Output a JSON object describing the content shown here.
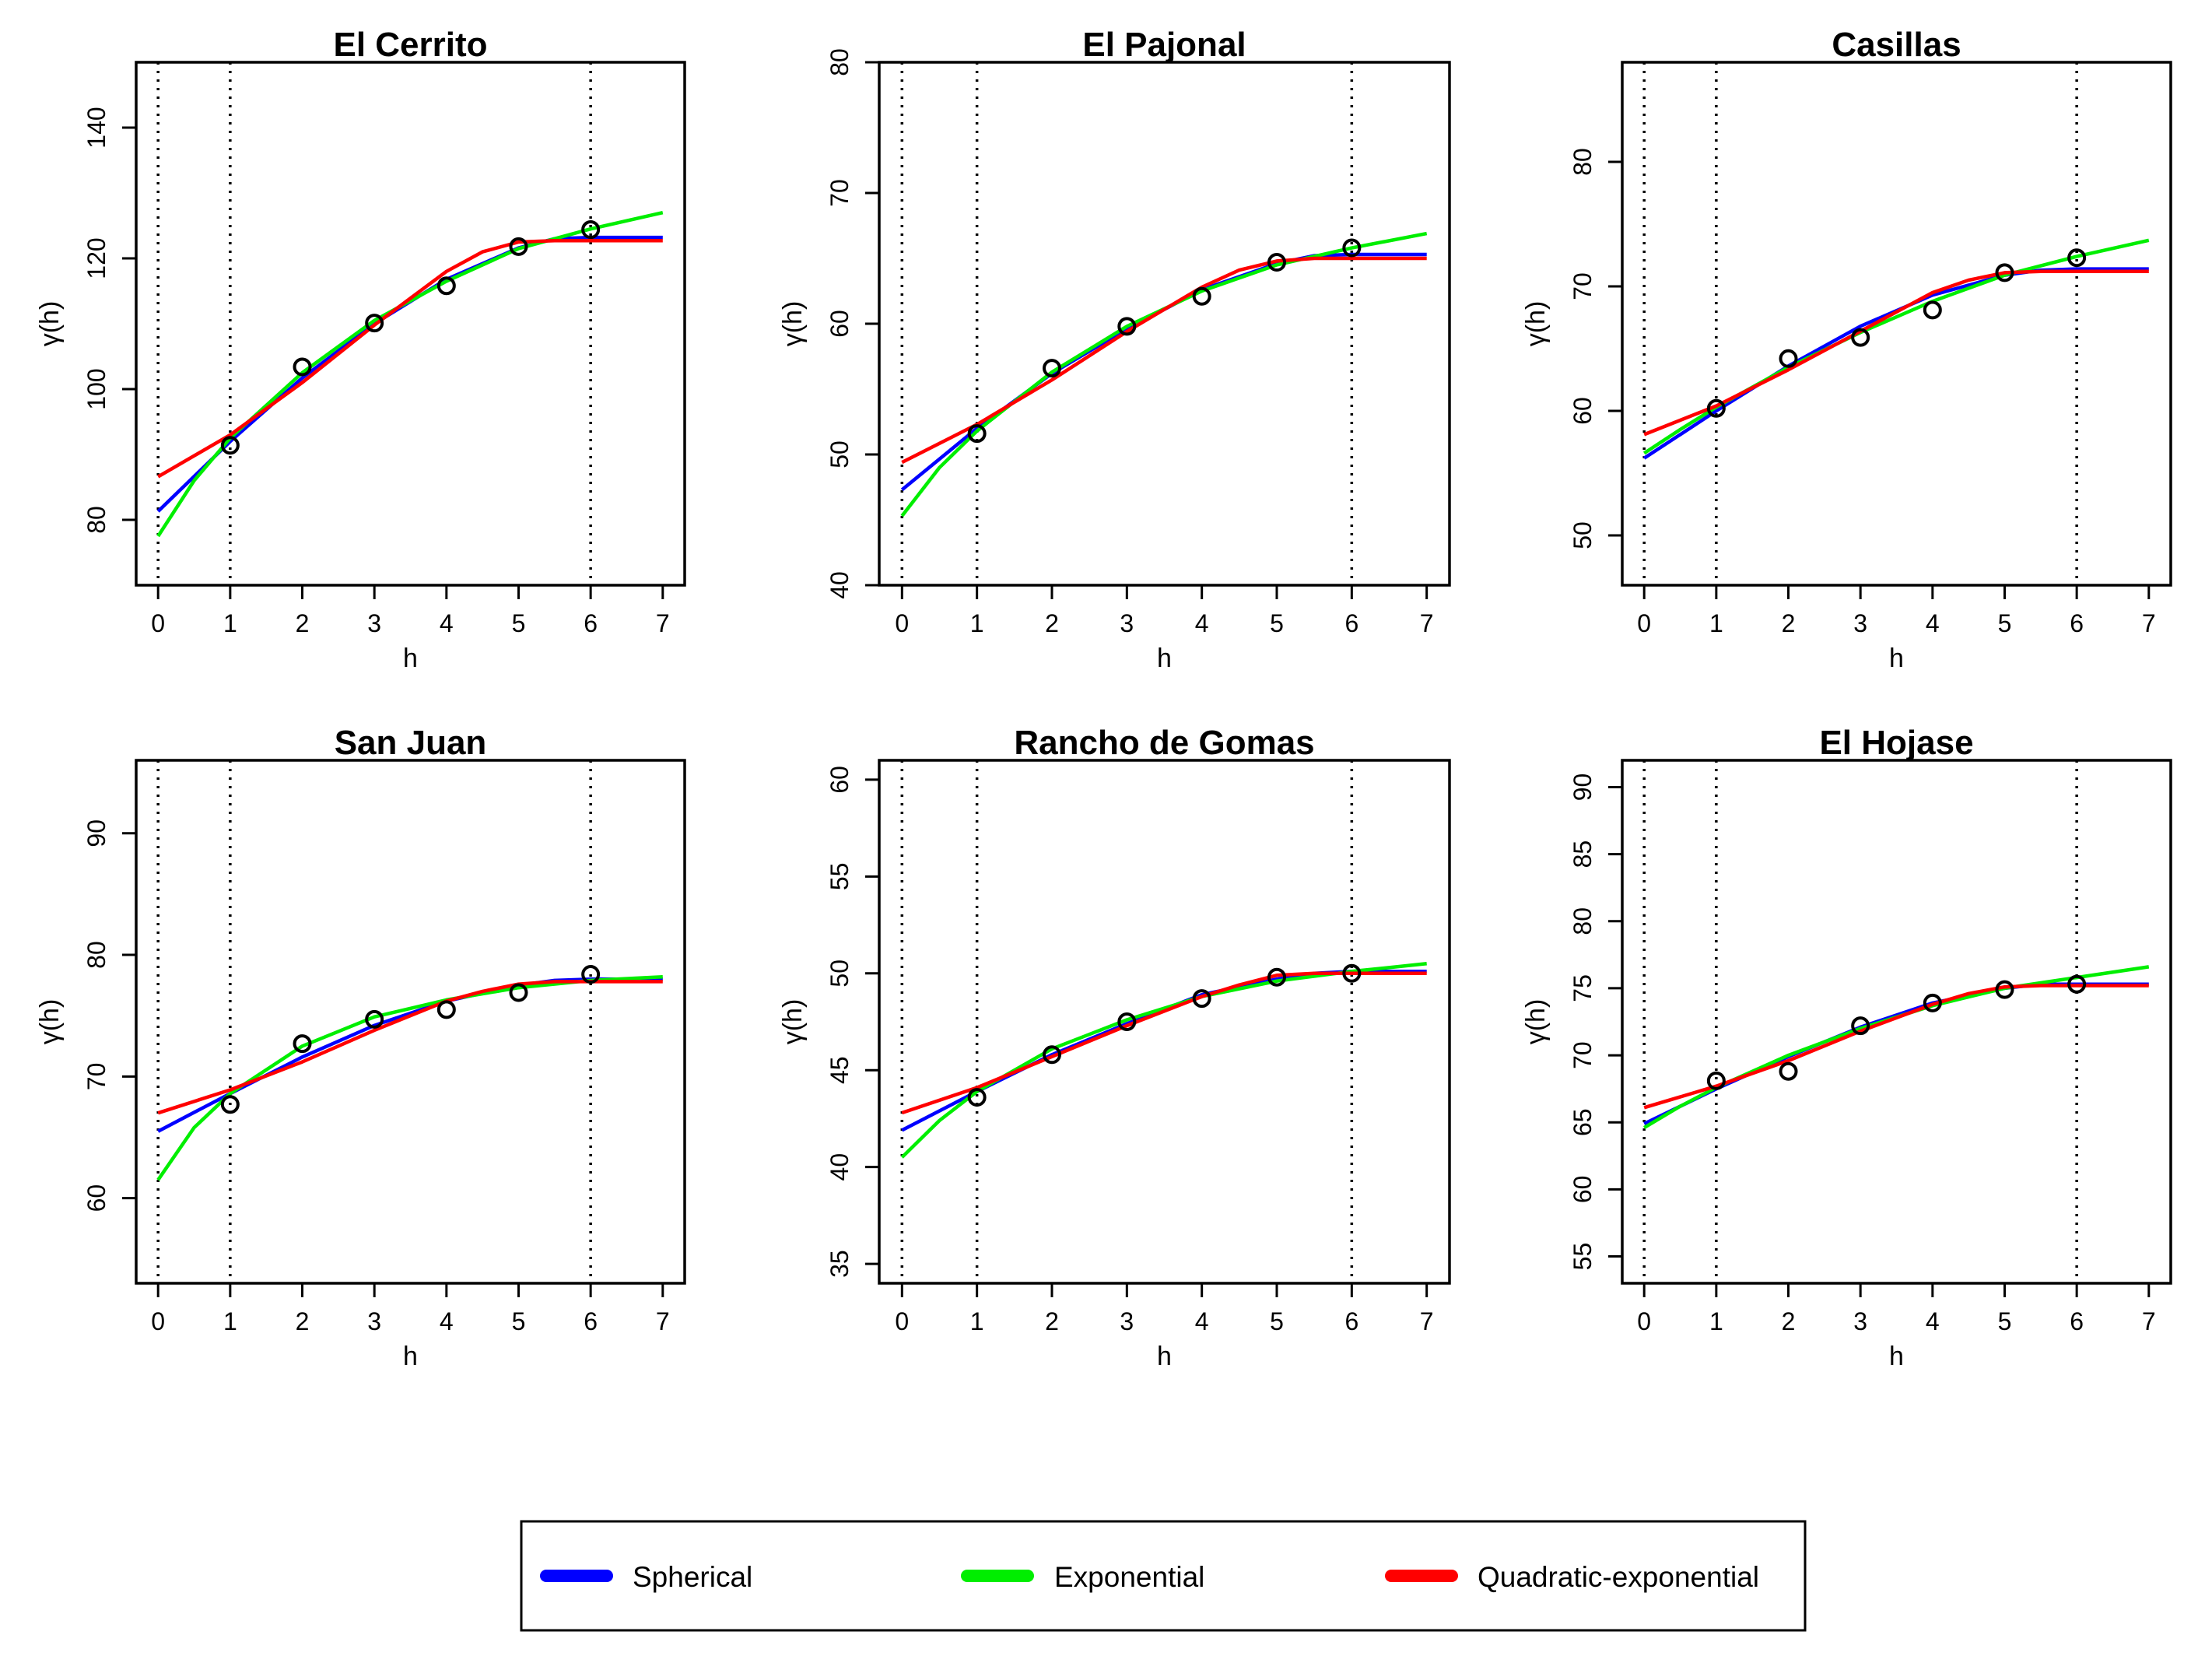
{
  "chart_data": [
    {
      "type": "line",
      "title": "El Cerrito",
      "xlabel": "h",
      "ylabel": "γ(h)",
      "xlim": [
        0,
        7
      ],
      "ylim": [
        70,
        150
      ],
      "xticks": [
        0,
        1,
        2,
        3,
        4,
        5,
        6,
        7
      ],
      "yticks": [
        80,
        100,
        120,
        140
      ],
      "vlines": [
        0,
        1,
        6
      ],
      "points": {
        "x": [
          1,
          2,
          3,
          4,
          5,
          6
        ],
        "y": [
          91.4,
          103.4,
          110.1,
          115.8,
          121.8,
          124.4
        ]
      },
      "series": [
        {
          "name": "Spherical",
          "color": "#0000ff",
          "x": [
            0,
            1,
            2,
            3,
            4,
            5,
            5.5,
            6,
            7
          ],
          "y": [
            81.3,
            92.0,
            101.7,
            110.0,
            116.8,
            121.6,
            123.0,
            123.2,
            123.2
          ]
        },
        {
          "name": "Exponential",
          "color": "#00ee00",
          "x": [
            0,
            0.5,
            1,
            2,
            3,
            4,
            5,
            6,
            7
          ],
          "y": [
            77.5,
            86.0,
            92.5,
            102.5,
            110.5,
            116.5,
            121.5,
            124.5,
            127.0
          ]
        },
        {
          "name": "Quadratic-exponential",
          "color": "#ff0000",
          "x": [
            0,
            1,
            2,
            3,
            4,
            4.5,
            5,
            5.5,
            6,
            7
          ],
          "y": [
            86.6,
            93.0,
            101.0,
            109.8,
            118.0,
            121.0,
            122.5,
            122.7,
            122.7,
            122.7
          ]
        }
      ]
    },
    {
      "type": "line",
      "title": "El Pajonal",
      "xlabel": "h",
      "ylabel": "γ(h)",
      "xlim": [
        0,
        7
      ],
      "ylim": [
        40,
        80
      ],
      "xticks": [
        0,
        1,
        2,
        3,
        4,
        5,
        6,
        7
      ],
      "yticks": [
        40,
        50,
        60,
        70,
        80
      ],
      "vlines": [
        0,
        1,
        6
      ],
      "points": {
        "x": [
          1,
          2,
          3,
          4,
          5,
          6
        ],
        "y": [
          51.6,
          56.6,
          59.8,
          62.1,
          64.7,
          65.8
        ]
      },
      "series": [
        {
          "name": "Spherical",
          "color": "#0000ff",
          "x": [
            0,
            1,
            2,
            3,
            4,
            5,
            5.5,
            6,
            7
          ],
          "y": [
            47.3,
            52.0,
            56.2,
            59.6,
            62.6,
            64.6,
            65.2,
            65.3,
            65.3
          ]
        },
        {
          "name": "Exponential",
          "color": "#00ee00",
          "x": [
            0,
            0.5,
            1,
            2,
            3,
            4,
            5,
            6,
            7
          ],
          "y": [
            45.3,
            49.0,
            51.8,
            56.3,
            59.8,
            62.5,
            64.5,
            65.8,
            66.9
          ]
        },
        {
          "name": "Quadratic-exponential",
          "color": "#ff0000",
          "x": [
            0,
            1,
            2,
            3,
            4,
            4.5,
            5,
            5.5,
            6,
            7
          ],
          "y": [
            49.4,
            52.3,
            55.7,
            59.4,
            62.8,
            64.1,
            64.8,
            65.0,
            65.0,
            65.0
          ]
        }
      ]
    },
    {
      "type": "line",
      "title": "Casillas",
      "xlabel": "h",
      "ylabel": "γ(h)",
      "xlim": [
        0,
        7
      ],
      "ylim": [
        46,
        88
      ],
      "xticks": [
        0,
        1,
        2,
        3,
        4,
        5,
        6,
        7
      ],
      "yticks": [
        50,
        60,
        70,
        80
      ],
      "vlines": [
        0,
        1,
        6
      ],
      "points": {
        "x": [
          1,
          2,
          3,
          4,
          5,
          6
        ],
        "y": [
          60.2,
          64.2,
          65.9,
          68.1,
          71.1,
          72.3
        ]
      },
      "series": [
        {
          "name": "Spherical",
          "color": "#0000ff",
          "x": [
            0,
            1,
            2,
            3,
            4,
            5,
            5.5,
            6,
            7
          ],
          "y": [
            56.2,
            60.0,
            63.6,
            66.8,
            69.3,
            70.9,
            71.3,
            71.4,
            71.4
          ]
        },
        {
          "name": "Exponential",
          "color": "#00ee00",
          "x": [
            0,
            0.5,
            1,
            2,
            3,
            4,
            5,
            6,
            7
          ],
          "y": [
            56.6,
            58.5,
            60.3,
            63.5,
            66.3,
            68.8,
            70.9,
            72.4,
            73.7
          ]
        },
        {
          "name": "Quadratic-exponential",
          "color": "#ff0000",
          "x": [
            0,
            1,
            2,
            3,
            4,
            4.5,
            5,
            5.5,
            6,
            7
          ],
          "y": [
            58.1,
            60.4,
            63.3,
            66.4,
            69.5,
            70.5,
            71.1,
            71.2,
            71.2,
            71.2
          ]
        }
      ]
    },
    {
      "type": "line",
      "title": "San Juan",
      "xlabel": "h",
      "ylabel": "γ(h)",
      "xlim": [
        0,
        7
      ],
      "ylim": [
        53,
        96
      ],
      "xticks": [
        0,
        1,
        2,
        3,
        4,
        5,
        6,
        7
      ],
      "yticks": [
        60,
        70,
        80,
        90
      ],
      "vlines": [
        0,
        1,
        6
      ],
      "points": {
        "x": [
          1,
          2,
          3,
          4,
          5,
          6
        ],
        "y": [
          67.7,
          72.7,
          74.7,
          75.5,
          76.9,
          78.4
        ]
      },
      "series": [
        {
          "name": "Spherical",
          "color": "#0000ff",
          "x": [
            0,
            1,
            2,
            3,
            4,
            5,
            5.5,
            6,
            7
          ],
          "y": [
            65.5,
            68.6,
            71.6,
            74.2,
            76.2,
            77.5,
            77.9,
            78.0,
            78.0
          ]
        },
        {
          "name": "Exponential",
          "color": "#00ee00",
          "x": [
            0,
            0.5,
            1,
            2,
            3,
            4,
            5,
            6,
            7
          ],
          "y": [
            61.5,
            65.8,
            68.6,
            72.5,
            74.9,
            76.3,
            77.3,
            77.9,
            78.2
          ]
        },
        {
          "name": "Quadratic-exponential",
          "color": "#ff0000",
          "x": [
            0,
            1,
            2,
            3,
            4,
            4.5,
            5,
            5.5,
            6,
            7
          ],
          "y": [
            67.0,
            68.9,
            71.2,
            73.8,
            76.2,
            77.0,
            77.6,
            77.8,
            77.8,
            77.8
          ]
        }
      ]
    },
    {
      "type": "line",
      "title": "Rancho de Gomas",
      "xlabel": "h",
      "ylabel": "γ(h)",
      "xlim": [
        0,
        7
      ],
      "ylim": [
        34,
        61
      ],
      "xticks": [
        0,
        1,
        2,
        3,
        4,
        5,
        6,
        7
      ],
      "yticks": [
        35,
        40,
        45,
        50,
        55,
        60
      ],
      "vlines": [
        0,
        1,
        6
      ],
      "points": {
        "x": [
          1,
          2,
          3,
          4,
          5,
          6
        ],
        "y": [
          43.6,
          45.8,
          47.5,
          48.7,
          49.8,
          50.0
        ]
      },
      "series": [
        {
          "name": "Spherical",
          "color": "#0000ff",
          "x": [
            0,
            1,
            2,
            3,
            4,
            5,
            5.5,
            6,
            7
          ],
          "y": [
            41.9,
            43.9,
            45.8,
            47.4,
            48.9,
            49.7,
            50.0,
            50.1,
            50.1
          ]
        },
        {
          "name": "Exponential",
          "color": "#00ee00",
          "x": [
            0,
            0.5,
            1,
            2,
            3,
            4,
            5,
            6,
            7
          ],
          "y": [
            40.5,
            42.4,
            43.9,
            46.1,
            47.6,
            48.8,
            49.6,
            50.1,
            50.5
          ]
        },
        {
          "name": "Quadratic-exponential",
          "color": "#ff0000",
          "x": [
            0,
            1,
            2,
            3,
            4,
            4.5,
            5,
            5.5,
            6,
            7
          ],
          "y": [
            42.8,
            44.1,
            45.7,
            47.3,
            48.8,
            49.4,
            49.9,
            50.0,
            50.0,
            50.0
          ]
        }
      ]
    },
    {
      "type": "line",
      "title": "El Hojase",
      "xlabel": "h",
      "ylabel": "γ(h)",
      "xlim": [
        0,
        7
      ],
      "ylim": [
        53,
        92
      ],
      "xticks": [
        0,
        1,
        2,
        3,
        4,
        5,
        6,
        7
      ],
      "yticks": [
        55,
        60,
        65,
        70,
        75,
        80,
        85,
        90
      ],
      "vlines": [
        0,
        1,
        6
      ],
      "points": {
        "x": [
          1,
          2,
          3,
          4,
          5,
          6
        ],
        "y": [
          68.1,
          68.8,
          72.2,
          73.9,
          74.9,
          75.3
        ]
      },
      "series": [
        {
          "name": "Spherical",
          "color": "#0000ff",
          "x": [
            0,
            1,
            2,
            3,
            4,
            5,
            5.5,
            6,
            7
          ],
          "y": [
            64.9,
            67.5,
            69.9,
            72.1,
            73.9,
            75.0,
            75.3,
            75.3,
            75.3
          ]
        },
        {
          "name": "Exponential",
          "color": "#00ee00",
          "x": [
            0,
            0.5,
            1,
            2,
            3,
            4,
            5,
            6,
            7
          ],
          "y": [
            64.6,
            66.2,
            67.6,
            70.0,
            72.0,
            73.7,
            75.0,
            75.8,
            76.6
          ]
        },
        {
          "name": "Quadratic-exponential",
          "color": "#ff0000",
          "x": [
            0,
            1,
            2,
            3,
            4,
            4.5,
            5,
            5.5,
            6,
            7
          ],
          "y": [
            66.1,
            67.7,
            69.6,
            71.8,
            73.8,
            74.6,
            75.1,
            75.2,
            75.2,
            75.2
          ]
        }
      ]
    }
  ],
  "legend": {
    "placement": "bottom-center",
    "items": [
      {
        "label": "Spherical",
        "color": "#0000ff"
      },
      {
        "label": "Exponential",
        "color": "#00ee00"
      },
      {
        "label": "Quadratic-exponential",
        "color": "#ff0000"
      }
    ]
  }
}
